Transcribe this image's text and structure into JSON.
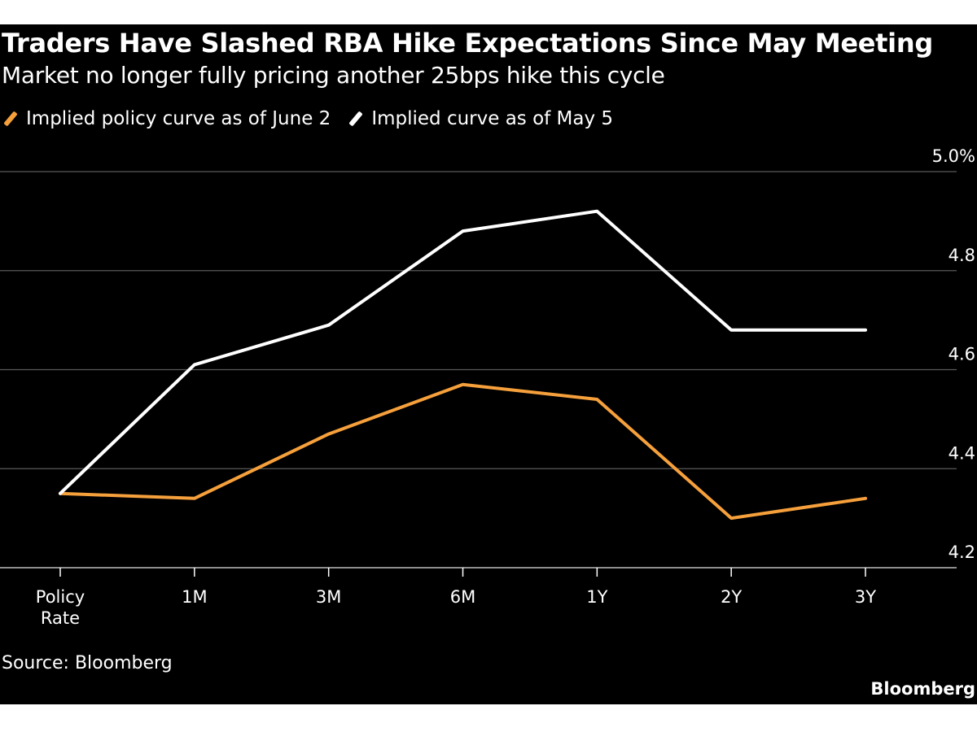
{
  "chart_data": {
    "type": "line",
    "title": "Traders Have Slashed RBA Hike Expectations Since May Meeting",
    "subtitle": "Market no longer fully pricing another 25bps hike this cycle",
    "categories": [
      "Policy Rate",
      "1M",
      "3M",
      "6M",
      "1Y",
      "2Y",
      "3Y"
    ],
    "category_lines": [
      [
        "Policy",
        "Rate"
      ],
      [
        "1M"
      ],
      [
        "3M"
      ],
      [
        "6M"
      ],
      [
        "1Y"
      ],
      [
        "2Y"
      ],
      [
        "3Y"
      ]
    ],
    "series": [
      {
        "name": "Implied policy curve as of June 2",
        "color": "#f6a03c",
        "values": [
          4.35,
          4.34,
          4.47,
          4.57,
          4.54,
          4.3,
          4.34
        ]
      },
      {
        "name": "Implied curve as of May 5",
        "color": "#ffffff",
        "values": [
          4.35,
          4.61,
          4.69,
          4.88,
          4.92,
          4.68,
          4.68
        ]
      }
    ],
    "ylim": [
      4.2,
      5.0
    ],
    "yticks": [
      4.2,
      4.4,
      4.6,
      4.8,
      5.0
    ],
    "ytick_labels": [
      "4.2",
      "4.4",
      "4.6",
      "4.8",
      "5.0%"
    ],
    "y_axis_position": "right",
    "grid": true,
    "legend_position": "top-left",
    "xlabel": "",
    "ylabel": ""
  },
  "footer": {
    "source": "Source: Bloomberg",
    "brand": "Bloomberg"
  },
  "colors": {
    "background": "#000000",
    "grid": "#5a5a5a"
  }
}
